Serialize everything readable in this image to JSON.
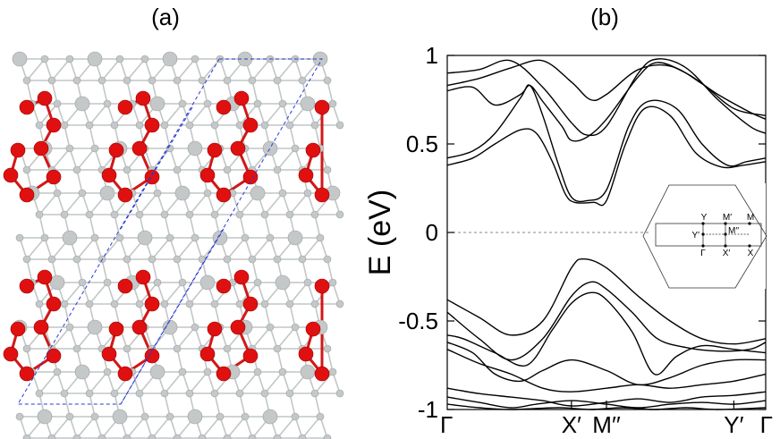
{
  "panels": {
    "a": {
      "label": "(a)"
    },
    "b": {
      "label": "(b)"
    }
  },
  "structure": {
    "cell_color": "#2a3bd4",
    "atom_colors": {
      "red": "#e01010",
      "grey": "#c4c8c8",
      "bond_grey": "#c2c6c6",
      "bond_red": "#d01818"
    }
  },
  "chart_data": {
    "type": "line",
    "ylabel": "E (eV)",
    "ylim": [
      -1,
      1
    ],
    "yticks": [
      {
        "value": 1,
        "label": "1"
      },
      {
        "value": 0.5,
        "label": "0.5"
      },
      {
        "value": 0,
        "label": "0"
      },
      {
        "value": -0.5,
        "label": "-0.5"
      },
      {
        "value": -1,
        "label": "-1"
      }
    ],
    "xlim": [
      0,
      1
    ],
    "kpoints": [
      {
        "pos": 0.0,
        "label": "Γ"
      },
      {
        "pos": 0.39,
        "label": "X′"
      },
      {
        "pos": 0.5,
        "label": "M′′"
      },
      {
        "pos": 0.9,
        "label": "Y′"
      },
      {
        "pos": 1.0,
        "label": "Γ"
      }
    ],
    "fermi_level": 0,
    "series": [
      {
        "values": [
          [
            0,
            0.9
          ],
          [
            0.1,
            0.92
          ],
          [
            0.2,
            0.97
          ],
          [
            0.3,
            0.82
          ],
          [
            0.39,
            0.62
          ],
          [
            0.44,
            0.55
          ],
          [
            0.5,
            0.6
          ],
          [
            0.6,
            0.9
          ],
          [
            0.66,
            0.98
          ],
          [
            0.75,
            0.93
          ],
          [
            0.85,
            0.75
          ],
          [
            0.95,
            0.6
          ],
          [
            1.0,
            0.56
          ]
        ]
      },
      {
        "values": [
          [
            0,
            0.83
          ],
          [
            0.1,
            0.87
          ],
          [
            0.2,
            0.93
          ],
          [
            0.3,
            0.97
          ],
          [
            0.39,
            0.85
          ],
          [
            0.45,
            0.75
          ],
          [
            0.5,
            0.78
          ],
          [
            0.6,
            0.92
          ],
          [
            0.7,
            0.94
          ],
          [
            0.8,
            0.84
          ],
          [
            0.9,
            0.7
          ],
          [
            1.0,
            0.66
          ]
        ]
      },
      {
        "values": [
          [
            0,
            0.8
          ],
          [
            0.08,
            0.82
          ],
          [
            0.15,
            0.72
          ],
          [
            0.23,
            0.78
          ],
          [
            0.26,
            0.83
          ],
          [
            0.3,
            0.74
          ],
          [
            0.36,
            0.6
          ],
          [
            0.39,
            0.52
          ],
          [
            0.44,
            0.54
          ],
          [
            0.5,
            0.64
          ],
          [
            0.6,
            0.88
          ],
          [
            0.66,
            0.96
          ],
          [
            0.75,
            0.9
          ],
          [
            0.85,
            0.78
          ],
          [
            0.95,
            0.68
          ],
          [
            1.0,
            0.64
          ]
        ]
      },
      {
        "values": [
          [
            0,
            0.42
          ],
          [
            0.08,
            0.46
          ],
          [
            0.15,
            0.56
          ],
          [
            0.23,
            0.76
          ],
          [
            0.26,
            0.83
          ],
          [
            0.3,
            0.66
          ],
          [
            0.35,
            0.38
          ],
          [
            0.39,
            0.2
          ],
          [
            0.44,
            0.18
          ],
          [
            0.5,
            0.24
          ],
          [
            0.57,
            0.6
          ],
          [
            0.63,
            0.74
          ],
          [
            0.72,
            0.7
          ],
          [
            0.8,
            0.5
          ],
          [
            0.88,
            0.38
          ],
          [
            0.94,
            0.4
          ],
          [
            1.0,
            0.42
          ]
        ]
      },
      {
        "values": [
          [
            0,
            0.38
          ],
          [
            0.08,
            0.42
          ],
          [
            0.15,
            0.5
          ],
          [
            0.23,
            0.58
          ],
          [
            0.28,
            0.56
          ],
          [
            0.33,
            0.4
          ],
          [
            0.37,
            0.22
          ],
          [
            0.4,
            0.17
          ],
          [
            0.46,
            0.17
          ],
          [
            0.5,
            0.18
          ],
          [
            0.56,
            0.5
          ],
          [
            0.62,
            0.7
          ],
          [
            0.7,
            0.66
          ],
          [
            0.78,
            0.45
          ],
          [
            0.86,
            0.37
          ],
          [
            0.93,
            0.38
          ],
          [
            1.0,
            0.4
          ]
        ]
      },
      {
        "values": [
          [
            0,
            -0.38
          ],
          [
            0.1,
            -0.48
          ],
          [
            0.2,
            -0.58
          ],
          [
            0.3,
            -0.5
          ],
          [
            0.39,
            -0.2
          ],
          [
            0.43,
            -0.15
          ],
          [
            0.5,
            -0.2
          ],
          [
            0.6,
            -0.36
          ],
          [
            0.7,
            -0.5
          ],
          [
            0.8,
            -0.6
          ],
          [
            0.9,
            -0.63
          ],
          [
            1.0,
            -0.6
          ]
        ]
      },
      {
        "values": [
          [
            0,
            -0.45
          ],
          [
            0.1,
            -0.6
          ],
          [
            0.2,
            -0.72
          ],
          [
            0.3,
            -0.6
          ],
          [
            0.39,
            -0.36
          ],
          [
            0.45,
            -0.28
          ],
          [
            0.5,
            -0.32
          ],
          [
            0.58,
            -0.45
          ],
          [
            0.66,
            -0.6
          ],
          [
            0.75,
            -0.65
          ],
          [
            0.85,
            -0.67
          ],
          [
            0.95,
            -0.66
          ],
          [
            1.0,
            -0.62
          ]
        ]
      },
      {
        "values": [
          [
            0,
            -0.58
          ],
          [
            0.05,
            -0.6
          ],
          [
            0.15,
            -0.68
          ],
          [
            0.25,
            -0.75
          ],
          [
            0.33,
            -0.55
          ],
          [
            0.39,
            -0.4
          ],
          [
            0.45,
            -0.34
          ],
          [
            0.5,
            -0.38
          ],
          [
            0.58,
            -0.56
          ],
          [
            0.65,
            -0.8
          ],
          [
            0.72,
            -0.7
          ],
          [
            0.8,
            -0.64
          ],
          [
            0.9,
            -0.66
          ],
          [
            1.0,
            -0.68
          ]
        ]
      },
      {
        "values": [
          [
            0,
            -0.62
          ],
          [
            0.08,
            -0.68
          ],
          [
            0.15,
            -0.8
          ],
          [
            0.23,
            -0.84
          ],
          [
            0.3,
            -0.78
          ],
          [
            0.39,
            -0.72
          ],
          [
            0.5,
            -0.78
          ],
          [
            0.6,
            -0.86
          ],
          [
            0.7,
            -0.82
          ],
          [
            0.8,
            -0.75
          ],
          [
            0.9,
            -0.72
          ],
          [
            1.0,
            -0.72
          ]
        ]
      },
      {
        "values": [
          [
            0,
            -0.66
          ],
          [
            0.1,
            -0.74
          ],
          [
            0.2,
            -0.8
          ],
          [
            0.3,
            -0.88
          ],
          [
            0.39,
            -0.9
          ],
          [
            0.5,
            -0.88
          ],
          [
            0.6,
            -0.86
          ],
          [
            0.7,
            -0.88
          ],
          [
            0.8,
            -0.86
          ],
          [
            0.9,
            -0.84
          ],
          [
            1.0,
            -0.8
          ]
        ]
      },
      {
        "values": [
          [
            0,
            -0.88
          ],
          [
            0.1,
            -0.91
          ],
          [
            0.2,
            -0.93
          ],
          [
            0.3,
            -0.95
          ],
          [
            0.39,
            -0.98
          ],
          [
            0.5,
            -0.96
          ],
          [
            0.6,
            -0.94
          ],
          [
            0.7,
            -0.96
          ],
          [
            0.8,
            -0.93
          ],
          [
            0.9,
            -0.92
          ],
          [
            1.0,
            -0.9
          ]
        ]
      },
      {
        "values": [
          [
            0,
            -0.93
          ],
          [
            0.1,
            -0.96
          ],
          [
            0.2,
            -0.99
          ],
          [
            0.28,
            -0.97
          ],
          [
            0.39,
            -0.95
          ],
          [
            0.5,
            -0.97
          ],
          [
            0.6,
            -0.99
          ],
          [
            0.7,
            -0.97
          ],
          [
            0.8,
            -0.96
          ],
          [
            0.9,
            -0.97
          ],
          [
            1.0,
            -0.95
          ]
        ]
      },
      {
        "values": [
          [
            0,
            -0.97
          ],
          [
            0.1,
            -0.99
          ],
          [
            0.2,
            -1.0
          ],
          [
            0.35,
            -0.99
          ],
          [
            0.45,
            -1.0
          ],
          [
            0.55,
            -0.99
          ],
          [
            0.65,
            -1.0
          ],
          [
            0.75,
            -0.99
          ],
          [
            0.85,
            -1.0
          ],
          [
            1.0,
            -0.99
          ]
        ]
      }
    ],
    "inset": {
      "labels": {
        "Y": "Y",
        "M1": "M′",
        "M": "M",
        "Yp": "Y′",
        "M2": "M′′",
        "G": "Γ",
        "Xp": "X′",
        "X": "X"
      }
    }
  }
}
